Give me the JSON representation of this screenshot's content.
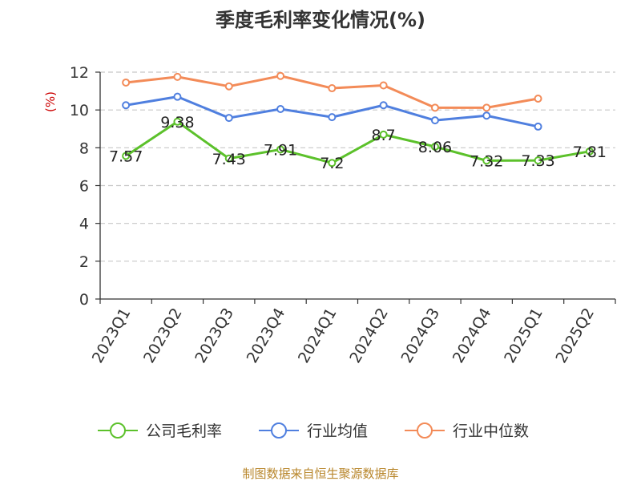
{
  "chart_data": {
    "type": "line",
    "title": "季度毛利率变化情况(%)",
    "ylabel": "(%)",
    "xlabel": "",
    "ylim": [
      0,
      12
    ],
    "yticks": [
      0,
      2,
      4,
      6,
      8,
      10,
      12
    ],
    "grid": true,
    "legend_position": "bottom",
    "categories": [
      "2023Q1",
      "2023Q2",
      "2023Q3",
      "2023Q4",
      "2024Q1",
      "2024Q2",
      "2024Q3",
      "2024Q4",
      "2025Q1",
      "2025Q2"
    ],
    "series": [
      {
        "name": "公司毛利率",
        "color": "#5cc12b",
        "values": [
          7.57,
          9.38,
          7.43,
          7.91,
          7.2,
          8.7,
          8.06,
          7.32,
          7.33,
          7.81
        ],
        "labels": [
          "7.57",
          "9.38",
          "7.43",
          "7.91",
          "7.2",
          "8.7",
          "8.06",
          "7.32",
          "7.33",
          "7.81"
        ]
      },
      {
        "name": "行业均值",
        "color": "#4f7fdf",
        "values": [
          10.25,
          10.7,
          9.58,
          10.05,
          9.62,
          10.25,
          9.45,
          9.7,
          9.12,
          null
        ]
      },
      {
        "name": "行业中位数",
        "color": "#f38b58",
        "values": [
          11.45,
          11.75,
          11.25,
          11.8,
          11.15,
          11.3,
          10.12,
          10.12,
          10.6,
          null
        ]
      }
    ],
    "source": "制图数据来自恒生聚源数据库"
  }
}
